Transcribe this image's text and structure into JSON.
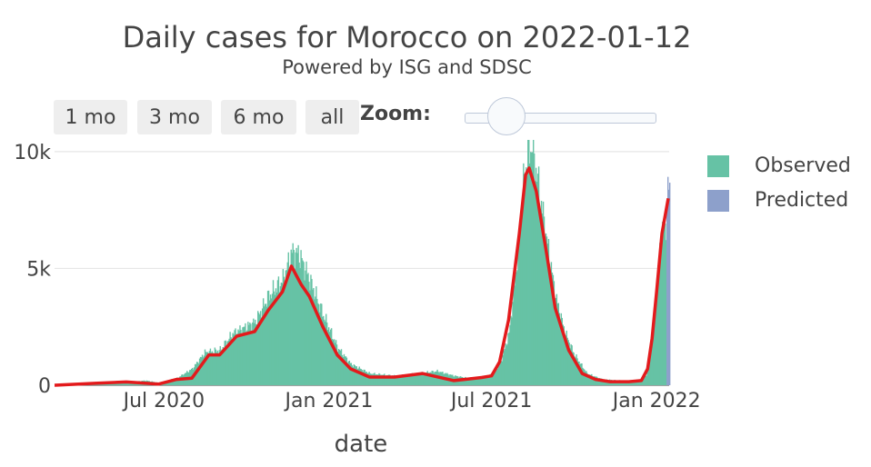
{
  "header": {
    "title": "Daily cases for Morocco on 2022-01-12",
    "subtitle": "Powered by ISG and SDSC"
  },
  "controls": {
    "range_buttons": [
      "1 mo",
      "3 mo",
      "6 mo",
      "all"
    ],
    "zoom_label": "Zoom:"
  },
  "legend": {
    "items": [
      {
        "label": "Observed",
        "color": "#66c2a5"
      },
      {
        "label": "Predicted",
        "color": "#8da0cb"
      }
    ]
  },
  "chart_data": {
    "type": "bar",
    "title": "Daily cases for Morocco on 2022-01-12",
    "xlabel": "date",
    "ylabel": "",
    "x_start": "2020-03-01",
    "x_end": "2022-01-15",
    "ylim": [
      0,
      10500
    ],
    "yticks": [
      0,
      5000,
      10000
    ],
    "ytick_labels": [
      "0",
      "5k",
      "10k"
    ],
    "xticks": [
      "2020-07-01",
      "2021-01-01",
      "2021-07-01",
      "2022-01-01"
    ],
    "xtick_labels": [
      "Jul 2020",
      "Jan 2021",
      "Jul 2021",
      "Jan 2022"
    ],
    "grid": true,
    "legend_position": "right",
    "observed_color": "#66c2a5",
    "predicted_color": "#8da0cb",
    "trend_color": "#e31a1c",
    "observed_keypoints": [
      [
        "2020-03-01",
        0
      ],
      [
        "2020-04-15",
        80
      ],
      [
        "2020-05-15",
        100
      ],
      [
        "2020-06-10",
        200
      ],
      [
        "2020-06-25",
        100
      ],
      [
        "2020-07-15",
        300
      ],
      [
        "2020-08-01",
        700
      ],
      [
        "2020-08-15",
        1400
      ],
      [
        "2020-09-01",
        1500
      ],
      [
        "2020-09-15",
        2200
      ],
      [
        "2020-10-10",
        2700
      ],
      [
        "2020-10-25",
        3800
      ],
      [
        "2020-11-10",
        4500
      ],
      [
        "2020-11-20",
        5700
      ],
      [
        "2020-11-28",
        5600
      ],
      [
        "2020-12-10",
        4500
      ],
      [
        "2020-12-25",
        3000
      ],
      [
        "2021-01-10",
        1600
      ],
      [
        "2021-01-25",
        900
      ],
      [
        "2021-02-15",
        500
      ],
      [
        "2021-03-15",
        400
      ],
      [
        "2021-04-10",
        500
      ],
      [
        "2021-05-01",
        600
      ],
      [
        "2021-05-20",
        400
      ],
      [
        "2021-06-05",
        300
      ],
      [
        "2021-06-20",
        350
      ],
      [
        "2021-07-01",
        450
      ],
      [
        "2021-07-10",
        900
      ],
      [
        "2021-07-20",
        2200
      ],
      [
        "2021-07-28",
        5000
      ],
      [
        "2021-08-05",
        8500
      ],
      [
        "2021-08-10",
        10000
      ],
      [
        "2021-08-15",
        10300
      ],
      [
        "2021-08-22",
        8500
      ],
      [
        "2021-09-01",
        6000
      ],
      [
        "2021-09-10",
        3800
      ],
      [
        "2021-09-20",
        2300
      ],
      [
        "2021-10-01",
        1300
      ],
      [
        "2021-10-15",
        500
      ],
      [
        "2021-11-01",
        250
      ],
      [
        "2021-11-20",
        200
      ],
      [
        "2021-12-10",
        150
      ],
      [
        "2021-12-20",
        450
      ],
      [
        "2021-12-25",
        1500
      ],
      [
        "2022-01-01",
        4500
      ],
      [
        "2022-01-05",
        6200
      ],
      [
        "2022-01-11",
        7000
      ]
    ],
    "predicted_keypoints": [
      [
        "2022-01-12",
        7800
      ],
      [
        "2022-01-13",
        8200
      ],
      [
        "2022-01-14",
        8500
      ]
    ],
    "trend_keypoints": [
      [
        "2020-03-01",
        0
      ],
      [
        "2020-04-15",
        80
      ],
      [
        "2020-05-20",
        140
      ],
      [
        "2020-06-25",
        50
      ],
      [
        "2020-07-15",
        250
      ],
      [
        "2020-08-01",
        300
      ],
      [
        "2020-08-20",
        1300
      ],
      [
        "2020-09-01",
        1300
      ],
      [
        "2020-09-20",
        2100
      ],
      [
        "2020-10-10",
        2300
      ],
      [
        "2020-10-25",
        3200
      ],
      [
        "2020-11-10",
        4000
      ],
      [
        "2020-11-20",
        5100
      ],
      [
        "2020-12-01",
        4300
      ],
      [
        "2020-12-10",
        3800
      ],
      [
        "2020-12-25",
        2500
      ],
      [
        "2021-01-10",
        1300
      ],
      [
        "2021-01-25",
        700
      ],
      [
        "2021-02-15",
        350
      ],
      [
        "2021-03-15",
        350
      ],
      [
        "2021-04-15",
        500
      ],
      [
        "2021-05-20",
        200
      ],
      [
        "2021-06-01",
        250
      ],
      [
        "2021-06-20",
        330
      ],
      [
        "2021-07-01",
        400
      ],
      [
        "2021-07-10",
        1000
      ],
      [
        "2021-07-20",
        2800
      ],
      [
        "2021-08-01",
        6500
      ],
      [
        "2021-08-08",
        9000
      ],
      [
        "2021-08-12",
        9300
      ],
      [
        "2021-08-20",
        8300
      ],
      [
        "2021-09-01",
        5500
      ],
      [
        "2021-09-10",
        3300
      ],
      [
        "2021-09-25",
        1500
      ],
      [
        "2021-10-10",
        500
      ],
      [
        "2021-10-25",
        250
      ],
      [
        "2021-11-10",
        150
      ],
      [
        "2021-12-01",
        150
      ],
      [
        "2021-12-15",
        200
      ],
      [
        "2021-12-22",
        700
      ],
      [
        "2021-12-27",
        2000
      ],
      [
        "2022-01-01",
        4000
      ],
      [
        "2022-01-07",
        6500
      ],
      [
        "2022-01-14",
        8000
      ]
    ]
  }
}
